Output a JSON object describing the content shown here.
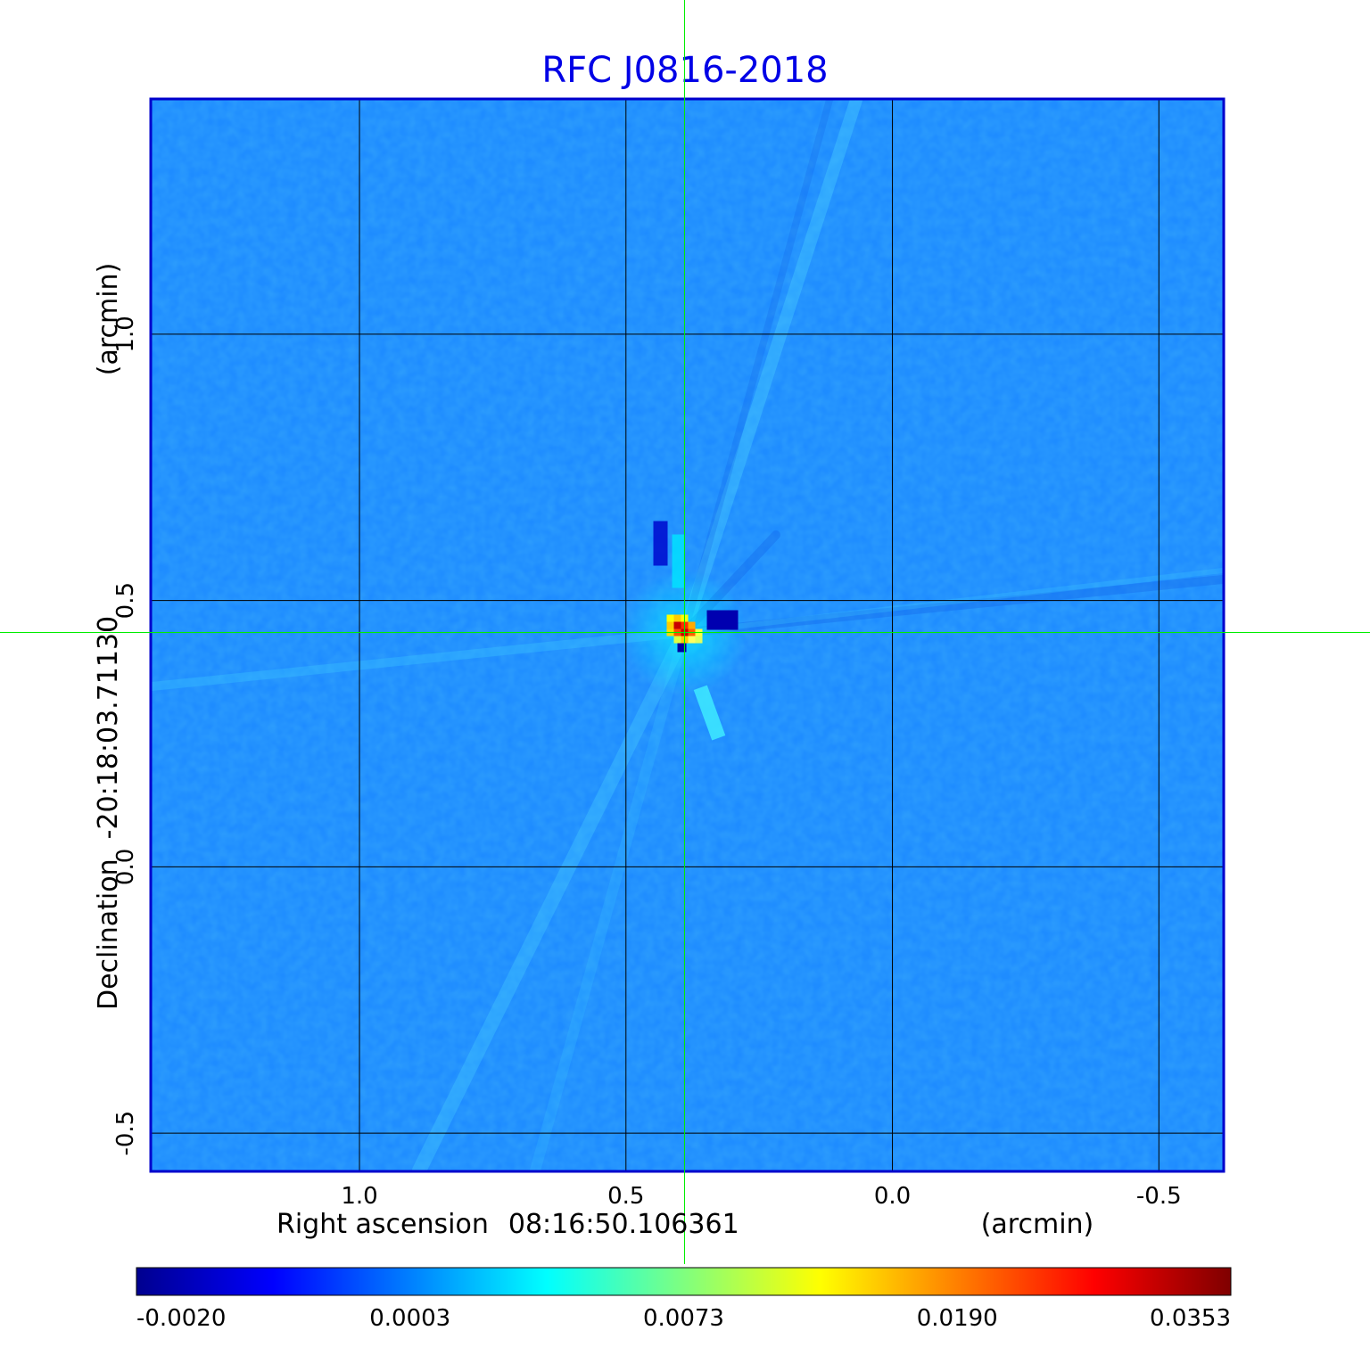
{
  "chart_data": {
    "type": "heatmap",
    "title": "RFC J0816-2018",
    "xlabel": {
      "prefix": "Right ascension",
      "center": "08:16:50.106361",
      "unit": "(arcmin)"
    },
    "ylabel": {
      "prefix": "Declination",
      "center": "-20:18:03.71130",
      "unit": "(arcmin)"
    },
    "x_range": [
      1.39,
      -0.62
    ],
    "y_range": [
      -0.57,
      1.44
    ],
    "xticks": [
      {
        "value": 1.0,
        "label": "1.0"
      },
      {
        "value": 0.5,
        "label": "0.5"
      },
      {
        "value": 0.0,
        "label": "0.0"
      },
      {
        "value": -0.5,
        "label": "-0.5"
      }
    ],
    "yticks": [
      {
        "value": 1.0,
        "label": "1.0"
      },
      {
        "value": 0.5,
        "label": "0.5"
      },
      {
        "value": 0.0,
        "label": "0.0"
      },
      {
        "value": -0.5,
        "label": "-0.5"
      }
    ],
    "grid": true,
    "crosshair": {
      "x": 0.39,
      "y": 0.44
    },
    "colorscale": "jet",
    "colorbar": {
      "orientation": "horizontal",
      "position": "bottom",
      "ticks": [
        "-0.0020",
        "0.0003",
        "0.0073",
        "0.0190",
        "0.0353"
      ]
    },
    "colors": {
      "title": "#0000e6",
      "frame": "#0000cc",
      "grid": "#000000",
      "crosshair": "#00ee00",
      "background_map": "#1e8cff",
      "peak": "#c80000"
    }
  }
}
